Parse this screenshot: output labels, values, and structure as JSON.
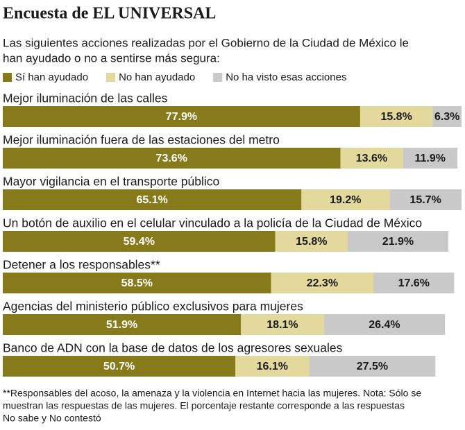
{
  "chart_data": {
    "type": "stacked-barh",
    "title": "Encuesta de EL UNIVERSAL",
    "subtitle": [
      "Las siguientes acciones realizadas por el Gobierno de la Ciudad de México le",
      "han ayudado o no a sentirse más segura:"
    ],
    "categories": [
      "Mejor iluminación de las calles",
      "Mejor iluminación fuera de las estaciones del metro",
      "Mayor vigilancia en el transporte público",
      "Un botón de auxilio en el celular vinculado a la policía de la Ciudad de México",
      "Detener a los responsables**",
      "Agencias del ministerio público exclusivos para mujeres",
      "Banco de ADN con la base de datos de los agresores sexuales"
    ],
    "series": [
      {
        "name": "Sí han ayudado",
        "color": "#877a1b",
        "values": [
          77.9,
          73.6,
          65.1,
          59.4,
          58.5,
          51.9,
          50.7
        ],
        "value_labels": [
          "77.9%",
          "73.6%",
          "65.1%",
          "59.4%",
          "58.5%",
          "51.9%",
          "50.7%"
        ]
      },
      {
        "name": "No han ayudado",
        "color": "#e3d99c",
        "values": [
          15.8,
          13.6,
          19.2,
          15.8,
          22.3,
          18.1,
          16.1
        ],
        "value_labels": [
          "15.8%",
          "13.6%",
          "19.2%",
          "15.8%",
          "22.3%",
          "18.1%",
          "16.1%"
        ]
      },
      {
        "name": "No ha visto esas acciones",
        "color": "#c9c9c9",
        "values": [
          6.3,
          11.9,
          15.7,
          21.9,
          17.6,
          26.4,
          27.5
        ],
        "value_labels": [
          "6.3%",
          "11.9%",
          "15.7%",
          "21.9%",
          "17.6%",
          "26.4%",
          "27.5%"
        ]
      }
    ],
    "xlim": [
      0,
      100
    ],
    "note": [
      "**Responsables del acoso, la amenaza y  la violencia en Internet hacia las mujeres. Nota: Sólo se",
      "muestran las respuestas de las mujeres. El porcentaje restante corresponde a las respuestas",
      "No sabe y No contestó"
    ]
  }
}
